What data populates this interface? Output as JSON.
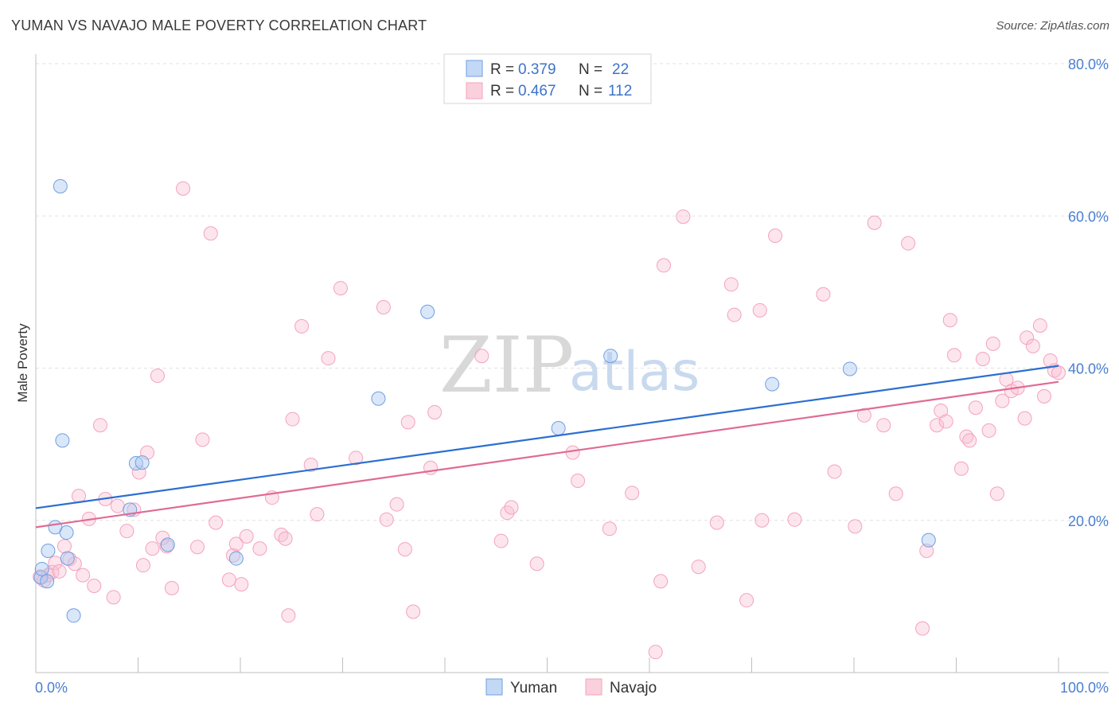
{
  "title": "YUMAN VS NAVAJO MALE POVERTY CORRELATION CHART",
  "source": "Source: ZipAtlas.com",
  "watermark": {
    "left": "ZIP",
    "right": "atlas"
  },
  "chart_data": {
    "type": "scatter",
    "ylabel": "Male Poverty",
    "xlim": [
      0,
      100
    ],
    "ylim": [
      0,
      80
    ],
    "x_tick_labels": [
      "0.0%",
      "100.0%"
    ],
    "y_ticks": [
      20,
      40,
      60,
      80
    ],
    "y_tick_labels": [
      "20.0%",
      "40.0%",
      "60.0%",
      "80.0%"
    ],
    "grid": true,
    "legend_position": "top-center",
    "legend": [
      {
        "r_label": "R =",
        "r": "0.379",
        "n_label": "N =",
        "n": "22"
      },
      {
        "r_label": "R =",
        "r": "0.467",
        "n_label": "N =",
        "n": "112"
      }
    ],
    "series": [
      {
        "name": "Yuman",
        "color": "#6f9fe0",
        "line_color": "#2b6fd1",
        "trend": {
          "x": [
            0,
            100
          ],
          "y": [
            21.6,
            40.3
          ]
        },
        "points": [
          [
            0.5,
            12.5
          ],
          [
            0.6,
            13.6
          ],
          [
            1.2,
            16.0
          ],
          [
            1.9,
            19.1
          ],
          [
            2.4,
            63.9
          ],
          [
            2.6,
            30.5
          ],
          [
            3.0,
            18.4
          ],
          [
            3.1,
            15.0
          ],
          [
            3.7,
            7.5
          ],
          [
            9.2,
            21.4
          ],
          [
            9.8,
            27.5
          ],
          [
            10.4,
            27.6
          ],
          [
            12.9,
            16.8
          ],
          [
            19.6,
            15.0
          ],
          [
            33.5,
            36.0
          ],
          [
            38.3,
            47.4
          ],
          [
            51.1,
            32.1
          ],
          [
            56.2,
            41.6
          ],
          [
            72.0,
            37.9
          ],
          [
            79.6,
            39.9
          ],
          [
            87.3,
            17.4
          ],
          [
            1.1,
            12.0
          ]
        ]
      },
      {
        "name": "Navajo",
        "color": "#f3a3bd",
        "line_color": "#e06b96",
        "trend": {
          "x": [
            0,
            100
          ],
          "y": [
            19.1,
            38.2
          ]
        },
        "points": [
          [
            0.4,
            12.6
          ],
          [
            0.8,
            12.1
          ],
          [
            1.2,
            12.8
          ],
          [
            1.6,
            13.2
          ],
          [
            1.9,
            14.4
          ],
          [
            2.3,
            13.3
          ],
          [
            2.8,
            16.6
          ],
          [
            3.3,
            14.9
          ],
          [
            3.8,
            14.3
          ],
          [
            4.2,
            23.2
          ],
          [
            4.6,
            12.8
          ],
          [
            5.2,
            20.2
          ],
          [
            5.7,
            11.4
          ],
          [
            6.3,
            32.5
          ],
          [
            6.8,
            22.8
          ],
          [
            7.6,
            9.9
          ],
          [
            8.0,
            21.9
          ],
          [
            8.9,
            18.6
          ],
          [
            9.6,
            21.4
          ],
          [
            10.1,
            26.3
          ],
          [
            10.5,
            14.1
          ],
          [
            10.9,
            28.9
          ],
          [
            11.4,
            16.3
          ],
          [
            11.9,
            39.0
          ],
          [
            12.4,
            17.7
          ],
          [
            12.8,
            16.6
          ],
          [
            13.3,
            11.1
          ],
          [
            14.4,
            63.6
          ],
          [
            15.8,
            16.5
          ],
          [
            16.3,
            30.6
          ],
          [
            17.1,
            57.7
          ],
          [
            17.6,
            19.7
          ],
          [
            18.9,
            12.2
          ],
          [
            19.3,
            15.4
          ],
          [
            19.6,
            16.9
          ],
          [
            20.1,
            11.6
          ],
          [
            20.6,
            17.9
          ],
          [
            21.9,
            16.3
          ],
          [
            23.1,
            23.0
          ],
          [
            24.0,
            18.1
          ],
          [
            24.4,
            17.6
          ],
          [
            24.7,
            7.5
          ],
          [
            25.1,
            33.3
          ],
          [
            26.0,
            45.5
          ],
          [
            26.9,
            27.3
          ],
          [
            27.5,
            20.8
          ],
          [
            28.6,
            41.3
          ],
          [
            29.8,
            50.5
          ],
          [
            31.3,
            28.2
          ],
          [
            34.0,
            48.0
          ],
          [
            34.3,
            20.1
          ],
          [
            35.3,
            22.1
          ],
          [
            36.1,
            16.2
          ],
          [
            36.4,
            32.9
          ],
          [
            36.9,
            8.0
          ],
          [
            38.6,
            26.9
          ],
          [
            39.0,
            34.2
          ],
          [
            43.6,
            41.6
          ],
          [
            45.5,
            17.3
          ],
          [
            46.1,
            21.0
          ],
          [
            46.5,
            21.7
          ],
          [
            49.0,
            14.3
          ],
          [
            52.5,
            28.9
          ],
          [
            53.0,
            25.2
          ],
          [
            56.1,
            18.9
          ],
          [
            58.3,
            23.6
          ],
          [
            61.1,
            12.0
          ],
          [
            61.4,
            53.5
          ],
          [
            60.6,
            2.7
          ],
          [
            63.3,
            59.9
          ],
          [
            64.8,
            13.9
          ],
          [
            66.6,
            19.7
          ],
          [
            68.0,
            51.0
          ],
          [
            68.3,
            47.0
          ],
          [
            69.5,
            9.5
          ],
          [
            70.8,
            47.6
          ],
          [
            71.0,
            20.0
          ],
          [
            72.3,
            57.4
          ],
          [
            74.2,
            20.1
          ],
          [
            77.0,
            49.7
          ],
          [
            78.1,
            26.4
          ],
          [
            80.1,
            19.2
          ],
          [
            81.0,
            33.8
          ],
          [
            82.0,
            59.1
          ],
          [
            82.9,
            32.5
          ],
          [
            84.1,
            23.5
          ],
          [
            85.3,
            56.4
          ],
          [
            86.7,
            5.8
          ],
          [
            87.1,
            16.0
          ],
          [
            88.1,
            32.5
          ],
          [
            88.5,
            34.4
          ],
          [
            89.0,
            33.0
          ],
          [
            89.4,
            46.3
          ],
          [
            89.8,
            41.7
          ],
          [
            90.5,
            26.8
          ],
          [
            91.0,
            31.0
          ],
          [
            91.3,
            30.5
          ],
          [
            91.9,
            34.8
          ],
          [
            92.6,
            41.2
          ],
          [
            93.2,
            31.8
          ],
          [
            93.6,
            43.2
          ],
          [
            94.0,
            23.5
          ],
          [
            94.5,
            35.7
          ],
          [
            94.9,
            38.5
          ],
          [
            95.4,
            37.0
          ],
          [
            96.0,
            37.4
          ],
          [
            96.7,
            33.4
          ],
          [
            96.9,
            44.0
          ],
          [
            97.5,
            42.9
          ],
          [
            98.2,
            45.6
          ],
          [
            98.6,
            36.3
          ],
          [
            99.2,
            41.0
          ],
          [
            99.6,
            39.7
          ],
          [
            100.0,
            39.4
          ]
        ]
      }
    ]
  }
}
